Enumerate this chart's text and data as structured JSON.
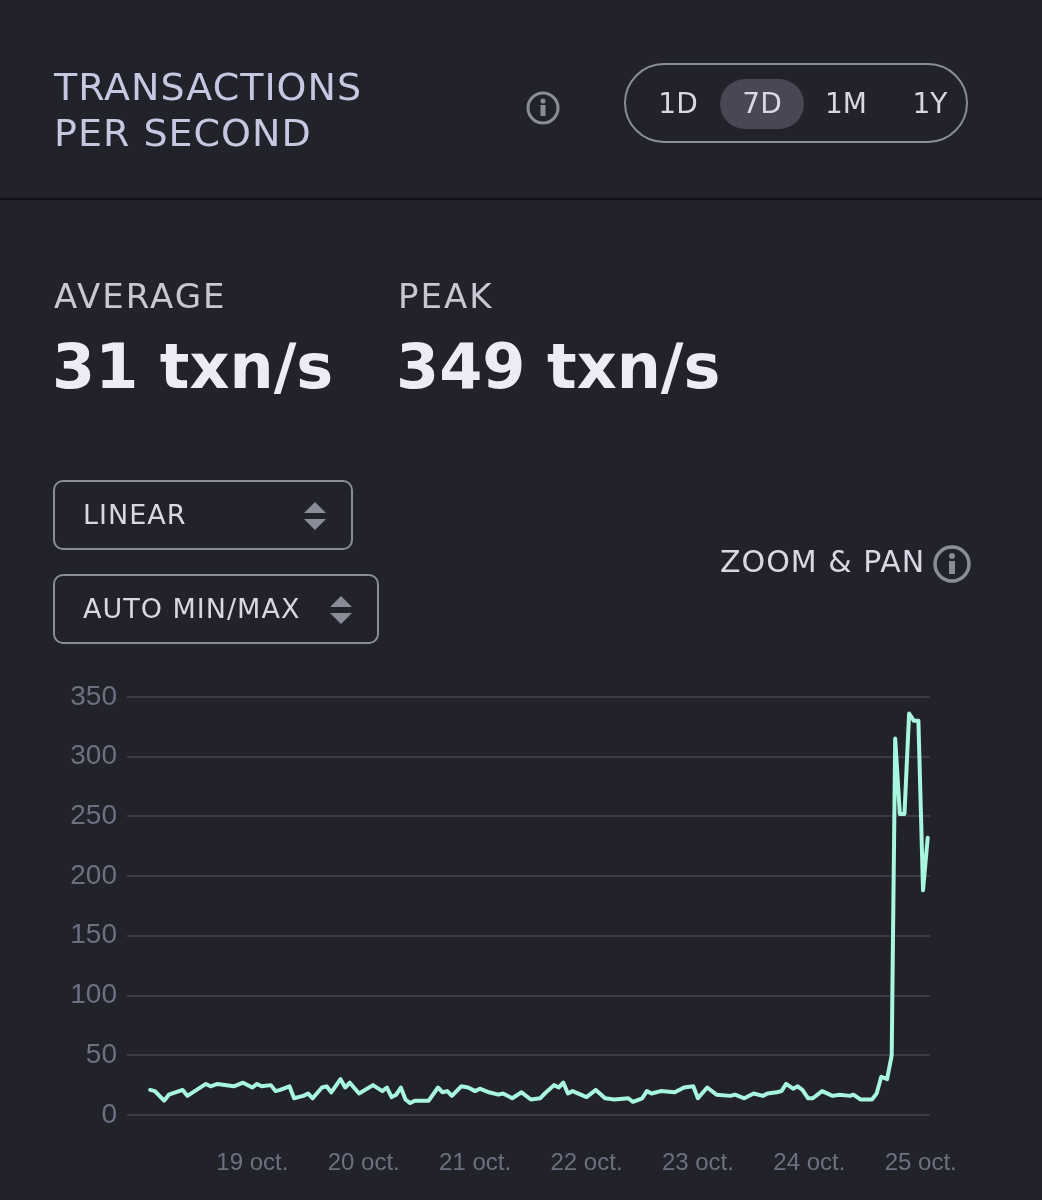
{
  "chart_data": {
    "type": "line",
    "title": "TRANSACTIONS PER SECOND",
    "annotations": [
      "1D",
      "7D",
      "1M",
      "1Y",
      "AVERAGE",
      "31 txn/s",
      "PEAK",
      "349 txn/s",
      "LINEAR",
      "AUTO MIN/MAX",
      "ZOOM & PAN"
    ],
    "x": [
      "--10-18T02:00",
      "--10-18T03:00",
      "--10-18T05:00",
      "--10-18T06:00",
      "--10-18T09:00",
      "--10-18T10:00",
      "--10-18T12:00",
      "--10-18T14:00",
      "--10-18T15:00",
      "--10-18T16:30",
      "--10-18T20:00",
      "--10-18T22:00",
      "--10-19T00:00",
      "--10-19T01:00",
      "--10-19T02:00",
      "--10-19T04:00",
      "--10-19T05:00",
      "--10-19T06:00",
      "--10-19T08:00",
      "--10-19T09:00",
      "--10-19T11:00",
      "--10-19T12:00",
      "--10-19T13:00",
      "--10-19T15:00",
      "--10-19T16:00",
      "--10-19T17:00",
      "--10-19T19:00",
      "--10-19T20:00",
      "--10-19T21:00",
      "--10-19T23:00",
      "--10-20T02:00",
      "--10-20T04:00",
      "--10-20T05:00",
      "--10-20T06:00",
      "--10-20T07:00",
      "--10-20T08:00",
      "--10-20T09:00",
      "--10-20T10:00",
      "--10-20T11:00",
      "--10-20T14:00",
      "--10-20T16:00",
      "--10-20T17:00",
      "--10-20T18:00",
      "--10-20T19:00",
      "--10-20T21:00",
      "--10-20T22:30",
      "--10-21T00:00",
      "--10-21T01:00",
      "--10-21T03:00",
      "--10-21T05:00",
      "--10-21T06:00",
      "--10-21T08:00",
      "--10-21T10:00",
      "--10-21T12:00",
      "--10-21T14:00",
      "--10-21T15:00",
      "--10-21T17:00",
      "--10-21T18:00",
      "--10-21T19:00",
      "--10-21T20:00",
      "--10-21T21:00",
      "--10-22T00:00",
      "--10-22T02:00",
      "--10-22T04:00",
      "--10-22T06:00",
      "--10-22T09:00",
      "--10-22T10:00",
      "--10-22T12:00",
      "--10-22T13:00",
      "--10-22T14:00",
      "--10-22T16:00",
      "--10-22T19:00",
      "--10-22T21:00",
      "--10-22T23:00",
      "--10-23T00:00",
      "--10-23T02:00",
      "--10-23T04:00",
      "--10-23T07:00",
      "--10-23T08:00",
      "--10-23T10:00",
      "--10-23T12:00",
      "--10-23T14:00",
      "--10-23T15:00",
      "--10-23T17:00",
      "--10-23T18:00",
      "--10-23T19:00",
      "--10-23T20:30",
      "--10-23T21:30",
      "--10-23T22:30",
      "--10-23T23:45",
      "--10-24T00:45",
      "--10-24T02:45",
      "--10-24T05:00",
      "--10-24T06:30",
      "--10-24T08:45",
      "--10-24T09:30",
      "--10-24T11:00",
      "--10-24T13:30",
      "--10-24T14:30",
      "--10-24T15:30",
      "--10-24T16:45",
      "--10-24T17:45",
      "--10-24T18:30",
      "--10-24T19:30",
      "--10-24T20:30",
      "--10-24T21:30",
      "--10-24T22:30",
      "--10-24T23:30",
      "--10-25T00:30",
      "--10-25T01:30"
    ],
    "series": [
      {
        "color": "#a8f5e0",
        "values": [
          21,
          20,
          12,
          17,
          21,
          16,
          21,
          26,
          24,
          26,
          24,
          27,
          23,
          26,
          24,
          25,
          20,
          21,
          24,
          14,
          16,
          18,
          14,
          23,
          24,
          19,
          30,
          23,
          27,
          18,
          25,
          20,
          23,
          15,
          17,
          23,
          13,
          10,
          12,
          12,
          23,
          19,
          20,
          16,
          24,
          23,
          20,
          22,
          19,
          17,
          18,
          14,
          19,
          13,
          14,
          18,
          25,
          23,
          27,
          18,
          20,
          15,
          21,
          14,
          13,
          14,
          11,
          14,
          20,
          18,
          20,
          19,
          23,
          24,
          14,
          23,
          17,
          16,
          17,
          14,
          18,
          16,
          18,
          19,
          20,
          26,
          22,
          24,
          21,
          14,
          14,
          20,
          16,
          17,
          16,
          17,
          13,
          13,
          18,
          32,
          30,
          50,
          315,
          252,
          252,
          336,
          330,
          330,
          188,
          232
        ]
      }
    ],
    "xlim": [
      "--10-17T21:00",
      "--10-25T02:00"
    ],
    "xticks": [
      {
        "value": "--10-19",
        "label": "19 oct."
      },
      {
        "value": "--10-20",
        "label": "20 oct."
      },
      {
        "value": "--10-21",
        "label": "21 oct."
      },
      {
        "value": "--10-22",
        "label": "22 oct."
      },
      {
        "value": "--10-23",
        "label": "23 oct."
      },
      {
        "value": "--10-24",
        "label": "24 oct."
      },
      {
        "value": "--10-25",
        "label": "25 oct."
      }
    ],
    "ylim": [
      0,
      350
    ],
    "yticks": [
      0,
      50,
      100,
      150,
      200,
      250,
      300,
      350
    ],
    "grid": "y",
    "marker": "none",
    "line_style": "solid"
  }
}
